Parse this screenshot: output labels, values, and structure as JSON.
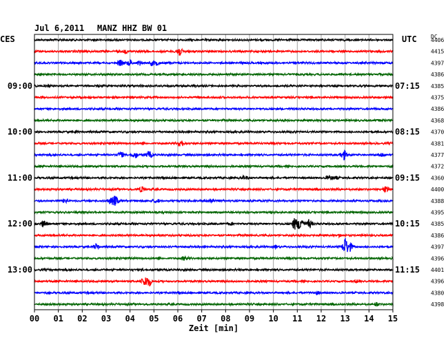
{
  "header": {
    "date": "Jul 6,2011",
    "station": "MANZ HHZ BW 01",
    "left_timezone": "CES",
    "right_timezone": "UTC",
    "dc_heading": "DC"
  },
  "chart_data": {
    "type": "line",
    "title": "Jul 6,2011   MANZ HHZ BW 01",
    "xlabel": "Zeit [min]",
    "xlim": [
      0,
      15
    ],
    "x_ticks": [
      "00",
      "01",
      "02",
      "03",
      "04",
      "05",
      "06",
      "07",
      "08",
      "09",
      "10",
      "11",
      "12",
      "13",
      "14",
      "15"
    ],
    "grid": true,
    "trace_colors": [
      "#000000",
      "#ff0000",
      "#0000ff",
      "#006400"
    ],
    "left_time_labels": [
      {
        "trace": 4,
        "label": "09:00"
      },
      {
        "trace": 8,
        "label": "10:00"
      },
      {
        "trace": 12,
        "label": "11:00"
      },
      {
        "trace": 16,
        "label": "12:00"
      },
      {
        "trace": 20,
        "label": "13:00"
      }
    ],
    "right_time_labels": [
      {
        "trace": 4,
        "label": "07:15"
      },
      {
        "trace": 8,
        "label": "08:15"
      },
      {
        "trace": 12,
        "label": "09:15"
      },
      {
        "trace": 16,
        "label": "10:15"
      },
      {
        "trace": 20,
        "label": "11:15"
      }
    ],
    "dc_offsets": [
      4406,
      4415,
      4397,
      4386,
      4385,
      4375,
      4386,
      4368,
      4370,
      4381,
      4377,
      4372,
      4360,
      4400,
      4388,
      4395,
      4385,
      4386,
      4397,
      4396,
      4401,
      4396,
      4380,
      4398
    ],
    "events": [
      {
        "trace": 1,
        "minute": 1.9,
        "amplitude": 2
      },
      {
        "trace": 1,
        "minute": 3.8,
        "amplitude": 2
      },
      {
        "trace": 1,
        "minute": 6.05,
        "amplitude": 7
      },
      {
        "trace": 2,
        "minute": 3.6,
        "amplitude": 4
      },
      {
        "trace": 2,
        "minute": 4.4,
        "amplitude": 3
      },
      {
        "trace": 2,
        "minute": 4.9,
        "amplitude": 3
      },
      {
        "trace": 2,
        "minute": 5.1,
        "amplitude": 3
      },
      {
        "trace": 2,
        "minute": 4.0,
        "amplitude": 4
      },
      {
        "trace": 9,
        "minute": 6.1,
        "amplitude": 7
      },
      {
        "trace": 10,
        "minute": 3.6,
        "amplitude": 4
      },
      {
        "trace": 10,
        "minute": 4.2,
        "amplitude": 5
      },
      {
        "trace": 10,
        "minute": 4.8,
        "amplitude": 5
      },
      {
        "trace": 10,
        "minute": 12.95,
        "amplitude": 7
      },
      {
        "trace": 10,
        "minute": 14.5,
        "amplitude": 3
      },
      {
        "trace": 12,
        "minute": 8.8,
        "amplitude": 3
      },
      {
        "trace": 12,
        "minute": 12.35,
        "amplitude": 3
      },
      {
        "trace": 12,
        "minute": 12.6,
        "amplitude": 2
      },
      {
        "trace": 13,
        "minute": 4.5,
        "amplitude": 4
      },
      {
        "trace": 13,
        "minute": 14.7,
        "amplitude": 5
      },
      {
        "trace": 14,
        "minute": 1.3,
        "amplitude": 4
      },
      {
        "trace": 14,
        "minute": 3.2,
        "amplitude": 5
      },
      {
        "trace": 14,
        "minute": 3.4,
        "amplitude": 7
      },
      {
        "trace": 14,
        "minute": 7.4,
        "amplitude": 4
      },
      {
        "trace": 14,
        "minute": 5.1,
        "amplitude": 3
      },
      {
        "trace": 16,
        "minute": 0.4,
        "amplitude": 5
      },
      {
        "trace": 16,
        "minute": 8.2,
        "amplitude": 2
      },
      {
        "trace": 16,
        "minute": 10.9,
        "amplitude": 8
      },
      {
        "trace": 16,
        "minute": 11.15,
        "amplitude": 11
      },
      {
        "trace": 16,
        "minute": 11.5,
        "amplitude": 6
      },
      {
        "trace": 17,
        "minute": 12.8,
        "amplitude": 2
      },
      {
        "trace": 18,
        "minute": 2.6,
        "amplitude": 4
      },
      {
        "trace": 18,
        "minute": 10.1,
        "amplitude": 2
      },
      {
        "trace": 18,
        "minute": 13.0,
        "amplitude": 12
      },
      {
        "trace": 18,
        "minute": 13.2,
        "amplitude": 6
      },
      {
        "trace": 19,
        "minute": 6.3,
        "amplitude": 3
      },
      {
        "trace": 21,
        "minute": 4.6,
        "amplitude": 7
      },
      {
        "trace": 21,
        "minute": 4.8,
        "amplitude": 6
      },
      {
        "trace": 21,
        "minute": 13.5,
        "amplitude": 2
      },
      {
        "trace": 22,
        "minute": 11.8,
        "amplitude": 2
      },
      {
        "trace": 23,
        "minute": 14.3,
        "amplitude": 2
      }
    ]
  }
}
